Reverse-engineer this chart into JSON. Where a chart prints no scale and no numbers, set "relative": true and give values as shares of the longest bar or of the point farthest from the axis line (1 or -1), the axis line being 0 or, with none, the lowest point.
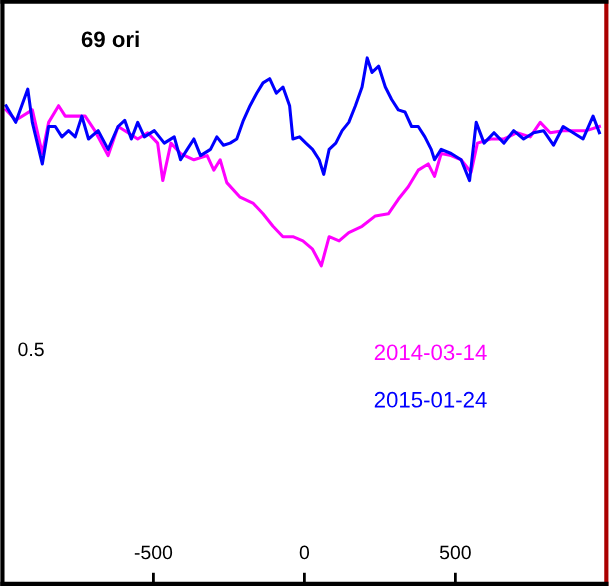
{
  "chart_data": {
    "type": "line",
    "title": "69 ori",
    "relative": true,
    "xlim": [
      -1000,
      1000
    ],
    "xticks": [
      -500,
      0,
      500
    ],
    "annotations": [
      "0.5"
    ],
    "grid": false,
    "legend": "bottom right",
    "marker": "none",
    "line_style": "solid",
    "series": [
      {
        "name": "2014-03-14",
        "color": "#ff00ff",
        "x": [
          -988,
          -956,
          -901,
          -868,
          -847,
          -814,
          -792,
          -759,
          -726,
          -694,
          -650,
          -617,
          -584,
          -552,
          -519,
          -486,
          -469,
          -442,
          -410,
          -366,
          -322,
          -300,
          -279,
          -257,
          -213,
          -169,
          -137,
          -104,
          -71,
          -38,
          -5,
          27,
          56,
          82,
          115,
          147,
          191,
          235,
          278,
          311,
          344,
          377,
          410,
          431,
          453,
          486,
          519,
          552,
          573,
          617,
          661,
          704,
          748,
          781,
          814,
          857,
          901,
          934,
          977
        ],
        "values": [
          0.75,
          0.7,
          0.75,
          0.54,
          0.69,
          0.77,
          0.72,
          0.72,
          0.72,
          0.65,
          0.53,
          0.67,
          0.64,
          0.61,
          0.64,
          0.59,
          0.41,
          0.59,
          0.54,
          0.51,
          0.53,
          0.46,
          0.51,
          0.4,
          0.33,
          0.3,
          0.25,
          0.19,
          0.14,
          0.14,
          0.12,
          0.08,
          0,
          0.14,
          0.12,
          0.16,
          0.19,
          0.24,
          0.25,
          0.32,
          0.38,
          0.46,
          0.49,
          0.43,
          0.54,
          0.53,
          0.51,
          0.45,
          0.59,
          0.61,
          0.61,
          0.64,
          0.62,
          0.69,
          0.64,
          0.65,
          0.65,
          0.65,
          0.67
        ]
      },
      {
        "name": "2015-01-24",
        "color": "#0000ff",
        "x": [
          -988,
          -956,
          -916,
          -901,
          -868,
          -847,
          -825,
          -803,
          -781,
          -759,
          -737,
          -715,
          -683,
          -650,
          -617,
          -595,
          -573,
          -552,
          -530,
          -497,
          -464,
          -431,
          -410,
          -388,
          -366,
          -344,
          -311,
          -290,
          -268,
          -246,
          -224,
          -202,
          -180,
          -158,
          -137,
          -115,
          -93,
          -71,
          -49,
          -38,
          -16,
          5,
          27,
          49,
          64,
          82,
          104,
          125,
          147,
          169,
          191,
          208,
          224,
          246,
          268,
          289,
          311,
          333,
          355,
          377,
          399,
          420,
          431,
          453,
          486,
          519,
          547,
          569,
          595,
          628,
          661,
          693,
          726,
          759,
          792,
          825,
          857,
          890,
          923,
          956,
          977
        ],
        "values": [
          0.77,
          0.69,
          0.85,
          0.69,
          0.49,
          0.67,
          0.67,
          0.62,
          0.65,
          0.62,
          0.72,
          0.61,
          0.65,
          0.56,
          0.67,
          0.7,
          0.61,
          0.69,
          0.62,
          0.65,
          0.59,
          0.62,
          0.51,
          0.56,
          0.61,
          0.53,
          0.56,
          0.62,
          0.58,
          0.59,
          0.61,
          0.7,
          0.77,
          0.83,
          0.88,
          0.9,
          0.83,
          0.86,
          0.77,
          0.61,
          0.62,
          0.59,
          0.56,
          0.51,
          0.44,
          0.56,
          0.59,
          0.65,
          0.69,
          0.77,
          0.86,
          1,
          0.93,
          0.96,
          0.86,
          0.8,
          0.75,
          0.74,
          0.67,
          0.67,
          0.62,
          0.56,
          0.51,
          0.56,
          0.54,
          0.51,
          0.41,
          0.69,
          0.59,
          0.64,
          0.59,
          0.65,
          0.61,
          0.64,
          0.65,
          0.58,
          0.67,
          0.64,
          0.61,
          0.72,
          0.64
        ]
      }
    ]
  }
}
